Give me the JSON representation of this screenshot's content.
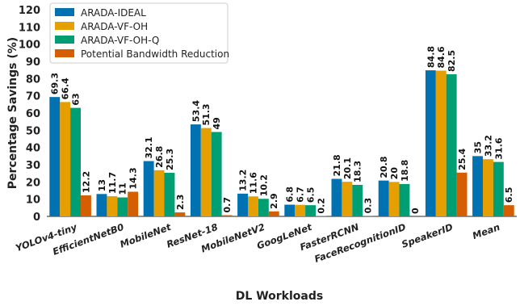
{
  "chart_data": {
    "type": "bar",
    "xlabel": "DL Workloads",
    "ylabel": "Percentage Savings (%)",
    "ylim": [
      0,
      120
    ],
    "yticks": [
      0,
      10,
      20,
      30,
      40,
      50,
      60,
      70,
      80,
      90,
      100,
      110,
      120
    ],
    "grid": false,
    "legend_position": "top-left",
    "categories": [
      "YOLOv4-tiny",
      "EfficientNetB0",
      "MobileNet",
      "ResNet-18",
      "MobileNetV2",
      "GoogLeNet",
      "FasterRCNN",
      "FaceRecognitionID",
      "SpeakerID",
      "Mean"
    ],
    "series": [
      {
        "name": "ARADA-IDEAL",
        "color": "#0072B2",
        "values": [
          69.3,
          13,
          32.1,
          53.4,
          13.2,
          6.8,
          21.8,
          20.8,
          84.8,
          35
        ],
        "labels": [
          "69.3",
          "13",
          "32.1",
          "53.4",
          "13.2",
          "6.8",
          "21.8",
          "20.8",
          "84.8",
          "35"
        ]
      },
      {
        "name": "ARADA-VF-OH",
        "color": "#E69F00",
        "values": [
          66.4,
          11.7,
          26.8,
          51.3,
          11.6,
          6.7,
          20.1,
          20,
          84.6,
          33.2
        ],
        "labels": [
          "66.4",
          "11.7",
          "26.8",
          "51.3",
          "11.6",
          "6.7",
          "20.1",
          "20",
          "84.6",
          "33.2"
        ]
      },
      {
        "name": "ARADA-VF-OH-Q",
        "color": "#009E73",
        "values": [
          63,
          11,
          25.3,
          49,
          10.2,
          6.5,
          18.3,
          18.8,
          82.5,
          31.6
        ],
        "labels": [
          "63",
          "11",
          "25.3",
          "49",
          "10.2",
          "6.5",
          "18.3",
          "18.8",
          "82.5",
          "31.6"
        ]
      },
      {
        "name": "Potential Bandwidth Reduction",
        "color": "#D55E00",
        "values": [
          12.2,
          14.3,
          2.3,
          0.7,
          2.9,
          0.2,
          0.3,
          0,
          25.4,
          6.5
        ],
        "labels": [
          "12.2",
          "14.3",
          "2.3",
          "0.7",
          "2.9",
          "0.2",
          "0.3",
          "0",
          "25.4",
          "6.5"
        ]
      }
    ]
  }
}
